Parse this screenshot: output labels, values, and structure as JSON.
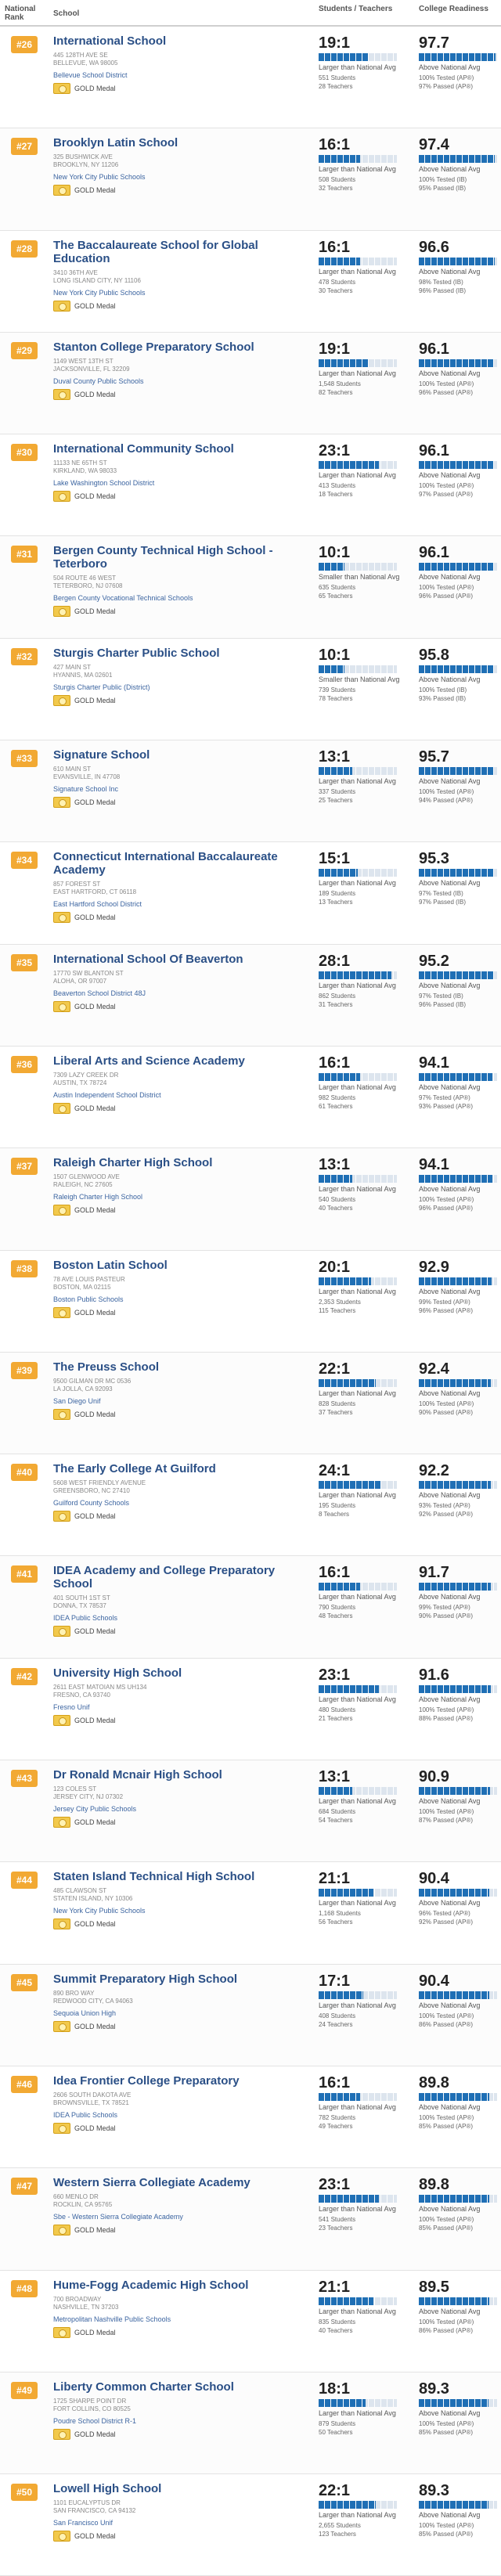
{
  "header": {
    "rank_label": "National Rank",
    "school_label": "School",
    "students_teachers_label": "Students / Teachers",
    "college_readiness_label": "College Readiness"
  },
  "schools": [
    {
      "rank": "#26",
      "name": "International School",
      "address": "445 128TH AVE SE",
      "city": "BELLEVUE, WA 98005",
      "district": "Bellevue School District",
      "medal": "GOLD Medal",
      "ratio": "19:1",
      "ratio_compare": "Larger than National Avg",
      "students": "551 Students",
      "teachers": "28 Teachers",
      "readiness": "97.7",
      "readiness_compare": "Above National Avg",
      "tested": "100% Tested (AP®)",
      "passed": "97% Passed (AP®)"
    },
    {
      "rank": "#27",
      "name": "Brooklyn Latin School",
      "address": "325 BUSHWICK AVE",
      "city": "BROOKLYN, NY 11206",
      "district": "New York City Public Schools",
      "medal": "GOLD Medal",
      "ratio": "16:1",
      "ratio_compare": "Larger than National Avg",
      "students": "508 Students",
      "teachers": "32 Teachers",
      "readiness": "97.4",
      "readiness_compare": "Above National Avg",
      "tested": "100% Tested (IB)",
      "passed": "95% Passed (IB)"
    },
    {
      "rank": "#28",
      "name": "The Baccalaureate School for Global Education",
      "address": "3410 36TH AVE",
      "city": "LONG ISLAND CITY, NY 11106",
      "district": "New York City Public Schools",
      "medal": "GOLD Medal",
      "ratio": "16:1",
      "ratio_compare": "Larger than National Avg",
      "students": "478 Students",
      "teachers": "30 Teachers",
      "readiness": "96.6",
      "readiness_compare": "Above National Avg",
      "tested": "98% Tested (IB)",
      "passed": "96% Passed (IB)"
    },
    {
      "rank": "#29",
      "name": "Stanton College Preparatory School",
      "address": "1149 WEST 13TH ST",
      "city": "JACKSONVILLE, FL 32209",
      "district": "Duval County Public Schools",
      "medal": "GOLD Medal",
      "ratio": "19:1",
      "ratio_compare": "Larger than National Avg",
      "students": "1,548 Students",
      "teachers": "82 Teachers",
      "readiness": "96.1",
      "readiness_compare": "Above National Avg",
      "tested": "100% Tested (AP®)",
      "passed": "96% Passed (AP®)"
    },
    {
      "rank": "#30",
      "name": "International Community School",
      "address": "11133 NE 65TH ST",
      "city": "KIRKLAND, WA 98033",
      "district": "Lake Washington School District",
      "medal": "GOLD Medal",
      "ratio": "23:1",
      "ratio_compare": "Larger than National Avg",
      "students": "413 Students",
      "teachers": "18 Teachers",
      "readiness": "96.1",
      "readiness_compare": "Above National Avg",
      "tested": "100% Tested (AP®)",
      "passed": "97% Passed (AP®)"
    },
    {
      "rank": "#31",
      "name": "Bergen County Technical High School - Teterboro",
      "address": "504 ROUTE 46 WEST",
      "city": "TETERBORO, NJ 07608",
      "district": "Bergen County Vocational Technical Schools",
      "medal": "GOLD Medal",
      "ratio": "10:1",
      "ratio_compare": "Smaller than National Avg",
      "students": "635 Students",
      "teachers": "65 Teachers",
      "readiness": "96.1",
      "readiness_compare": "Above National Avg",
      "tested": "100% Tested (AP®)",
      "passed": "96% Passed (AP®)"
    },
    {
      "rank": "#32",
      "name": "Sturgis Charter Public School",
      "address": "427 MAIN ST",
      "city": "HYANNIS, MA 02601",
      "district": "Sturgis Charter Public (District)",
      "medal": "GOLD Medal",
      "ratio": "10:1",
      "ratio_compare": "Smaller than National Avg",
      "students": "739 Students",
      "teachers": "78 Teachers",
      "readiness": "95.8",
      "readiness_compare": "Above National Avg",
      "tested": "100% Tested (IB)",
      "passed": "93% Passed (IB)"
    },
    {
      "rank": "#33",
      "name": "Signature School",
      "address": "610 MAIN ST",
      "city": "EVANSVILLE, IN 47708",
      "district": "Signature School Inc",
      "medal": "GOLD Medal",
      "ratio": "13:1",
      "ratio_compare": "Larger than National Avg",
      "students": "337 Students",
      "teachers": "25 Teachers",
      "readiness": "95.7",
      "readiness_compare": "Above National Avg",
      "tested": "100% Tested (AP®)",
      "passed": "94% Passed (AP®)"
    },
    {
      "rank": "#34",
      "name": "Connecticut International Baccalaureate Academy",
      "address": "857 FOREST ST",
      "city": "EAST HARTFORD, CT 06118",
      "district": "East Hartford School District",
      "medal": "GOLD Medal",
      "ratio": "15:1",
      "ratio_compare": "Larger than National Avg",
      "students": "189 Students",
      "teachers": "13 Teachers",
      "readiness": "95.3",
      "readiness_compare": "Above National Avg",
      "tested": "97% Tested (IB)",
      "passed": "97% Passed (IB)"
    },
    {
      "rank": "#35",
      "name": "International School Of Beaverton",
      "address": "17770 SW BLANTON ST",
      "city": "ALOHA, OR 97007",
      "district": "Beaverton School District 48J",
      "medal": "GOLD Medal",
      "ratio": "28:1",
      "ratio_compare": "Larger than National Avg",
      "students": "862 Students",
      "teachers": "31 Teachers",
      "readiness": "95.2",
      "readiness_compare": "Above National Avg",
      "tested": "97% Tested (IB)",
      "passed": "96% Passed (IB)"
    },
    {
      "rank": "#36",
      "name": "Liberal Arts and Science Academy",
      "address": "7309 LAZY CREEK DR",
      "city": "AUSTIN, TX 78724",
      "district": "Austin Independent School District",
      "medal": "GOLD Medal",
      "ratio": "16:1",
      "ratio_compare": "Larger than National Avg",
      "students": "982 Students",
      "teachers": "61 Teachers",
      "readiness": "94.1",
      "readiness_compare": "Above National Avg",
      "tested": "97% Tested (AP®)",
      "passed": "93% Passed (AP®)"
    },
    {
      "rank": "#37",
      "name": "Raleigh Charter High School",
      "address": "1507 GLENWOOD AVE",
      "city": "RALEIGH, NC 27605",
      "district": "Raleigh Charter High School",
      "medal": "GOLD Medal",
      "ratio": "13:1",
      "ratio_compare": "Larger than National Avg",
      "students": "540 Students",
      "teachers": "40 Teachers",
      "readiness": "94.1",
      "readiness_compare": "Above National Avg",
      "tested": "100% Tested (AP®)",
      "passed": "96% Passed (AP®)"
    },
    {
      "rank": "#38",
      "name": "Boston Latin School",
      "address": "78 AVE LOUIS PASTEUR",
      "city": "BOSTON, MA 02115",
      "district": "Boston Public Schools",
      "medal": "GOLD Medal",
      "ratio": "20:1",
      "ratio_compare": "Larger than National Avg",
      "students": "2,353 Students",
      "teachers": "115 Teachers",
      "readiness": "92.9",
      "readiness_compare": "Above National Avg",
      "tested": "99% Tested (AP®)",
      "passed": "96% Passed (AP®)"
    },
    {
      "rank": "#39",
      "name": "The Preuss School",
      "address": "9500 GILMAN DR MC 0536",
      "city": "LA JOLLA, CA 92093",
      "district": "San Diego Unif",
      "medal": "GOLD Medal",
      "ratio": "22:1",
      "ratio_compare": "Larger than National Avg",
      "students": "828 Students",
      "teachers": "37 Teachers",
      "readiness": "92.4",
      "readiness_compare": "Above National Avg",
      "tested": "100% Tested (AP®)",
      "passed": "90% Passed (AP®)"
    },
    {
      "rank": "#40",
      "name": "The Early College At Guilford",
      "address": "5608 WEST FRIENDLY AVENUE",
      "city": "GREENSBORO, NC 27410",
      "district": "Guilford County Schools",
      "medal": "GOLD Medal",
      "ratio": "24:1",
      "ratio_compare": "Larger than National Avg",
      "students": "195 Students",
      "teachers": "8 Teachers",
      "readiness": "92.2",
      "readiness_compare": "Above National Avg",
      "tested": "93% Tested (AP®)",
      "passed": "92% Passed (AP®)"
    },
    {
      "rank": "#41",
      "name": "IDEA Academy and College Preparatory School",
      "address": "401 SOUTH 1ST ST",
      "city": "DONNA, TX 78537",
      "district": "IDEA Public Schools",
      "medal": "GOLD Medal",
      "ratio": "16:1",
      "ratio_compare": "Larger than National Avg",
      "students": "790 Students",
      "teachers": "48 Teachers",
      "readiness": "91.7",
      "readiness_compare": "Above National Avg",
      "tested": "99% Tested (AP®)",
      "passed": "90% Passed (AP®)"
    },
    {
      "rank": "#42",
      "name": "University High School",
      "address": "2611 EAST MATOIAN MS UH134",
      "city": "FRESNO, CA 93740",
      "district": "Fresno Unif",
      "medal": "GOLD Medal",
      "ratio": "23:1",
      "ratio_compare": "Larger than National Avg",
      "students": "480 Students",
      "teachers": "21 Teachers",
      "readiness": "91.6",
      "readiness_compare": "Above National Avg",
      "tested": "100% Tested (AP®)",
      "passed": "88% Passed (AP®)"
    },
    {
      "rank": "#43",
      "name": "Dr Ronald Mcnair High School",
      "address": "123 COLES ST",
      "city": "JERSEY CITY, NJ 07302",
      "district": "Jersey City Public Schools",
      "medal": "GOLD Medal",
      "ratio": "13:1",
      "ratio_compare": "Larger than National Avg",
      "students": "684 Students",
      "teachers": "54 Teachers",
      "readiness": "90.9",
      "readiness_compare": "Above National Avg",
      "tested": "100% Tested (AP®)",
      "passed": "87% Passed (AP®)"
    },
    {
      "rank": "#44",
      "name": "Staten Island Technical High School",
      "address": "485 CLAWSON ST",
      "city": "STATEN ISLAND, NY 10306",
      "district": "New York City Public Schools",
      "medal": "GOLD Medal",
      "ratio": "21:1",
      "ratio_compare": "Larger than National Avg",
      "students": "1,168 Students",
      "teachers": "56 Teachers",
      "readiness": "90.4",
      "readiness_compare": "Above National Avg",
      "tested": "96% Tested (AP®)",
      "passed": "92% Passed (AP®)"
    },
    {
      "rank": "#45",
      "name": "Summit Preparatory High School",
      "address": "890 BRO WAY",
      "city": "REDWOOD CITY, CA 94063",
      "district": "Sequoia Union High",
      "medal": "GOLD Medal",
      "ratio": "17:1",
      "ratio_compare": "Larger than National Avg",
      "students": "408 Students",
      "teachers": "24 Teachers",
      "readiness": "90.4",
      "readiness_compare": "Above National Avg",
      "tested": "100% Tested (AP®)",
      "passed": "86% Passed (AP®)"
    },
    {
      "rank": "#46",
      "name": "Idea Frontier College Preparatory",
      "address": "2606 SOUTH DAKOTA AVE",
      "city": "BROWNSVILLE, TX 78521",
      "district": "IDEA Public Schools",
      "medal": "GOLD Medal",
      "ratio": "16:1",
      "ratio_compare": "Larger than National Avg",
      "students": "782 Students",
      "teachers": "49 Teachers",
      "readiness": "89.8",
      "readiness_compare": "Above National Avg",
      "tested": "100% Tested (AP®)",
      "passed": "85% Passed (AP®)"
    },
    {
      "rank": "#47",
      "name": "Western Sierra Collegiate Academy",
      "address": "660 MENLO DR",
      "city": "ROCKLIN, CA 95765",
      "district": "Sbe - Western Sierra Collegiate Academy",
      "medal": "GOLD Medal",
      "ratio": "23:1",
      "ratio_compare": "Larger than National Avg",
      "students": "541 Students",
      "teachers": "23 Teachers",
      "readiness": "89.8",
      "readiness_compare": "Above National Avg",
      "tested": "100% Tested (AP®)",
      "passed": "85% Passed (AP®)"
    },
    {
      "rank": "#48",
      "name": "Hume-Fogg Academic High School",
      "address": "700 BROADWAY",
      "city": "NASHVILLE, TN 37203",
      "district": "Metropolitan Nashville Public Schools",
      "medal": "GOLD Medal",
      "ratio": "21:1",
      "ratio_compare": "Larger than National Avg",
      "students": "835 Students",
      "teachers": "40 Teachers",
      "readiness": "89.5",
      "readiness_compare": "Above National Avg",
      "tested": "100% Tested (AP®)",
      "passed": "86% Passed (AP®)"
    },
    {
      "rank": "#49",
      "name": "Liberty Common Charter School",
      "address": "1725 SHARPE POINT DR",
      "city": "FORT COLLINS, CO 80525",
      "district": "Poudre School District R-1",
      "medal": "GOLD Medal",
      "ratio": "18:1",
      "ratio_compare": "Larger than National Avg",
      "students": "879 Students",
      "teachers": "50 Teachers",
      "readiness": "89.3",
      "readiness_compare": "Above National Avg",
      "tested": "100% Tested (AP®)",
      "passed": "85% Passed (AP®)"
    },
    {
      "rank": "#50",
      "name": "Lowell High School",
      "address": "1101 EUCALYPTUS DR",
      "city": "SAN FRANCISCO, CA 94132",
      "district": "San Francisco Unif",
      "medal": "GOLD Medal",
      "ratio": "22:1",
      "ratio_compare": "Larger than National Avg",
      "students": "2,655 Students",
      "teachers": "123 Teachers",
      "readiness": "89.3",
      "readiness_compare": "Above National Avg",
      "tested": "100% Tested (AP®)",
      "passed": "85% Passed (AP®)"
    }
  ]
}
